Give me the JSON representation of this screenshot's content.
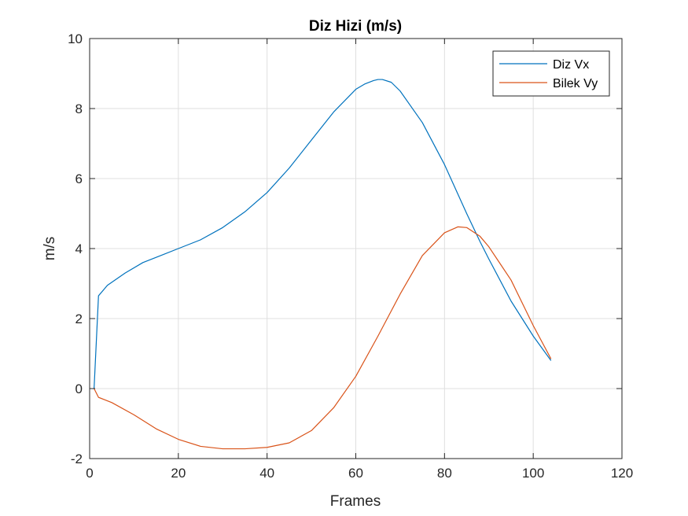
{
  "chart_data": {
    "type": "line",
    "title": "Diz Hizi (m/s)",
    "xlabel": "Frames",
    "ylabel": "m/s",
    "xlim": [
      0,
      120
    ],
    "ylim": [
      -2,
      10
    ],
    "xticks": [
      0,
      20,
      40,
      60,
      80,
      100,
      120
    ],
    "yticks": [
      -2,
      0,
      2,
      4,
      6,
      8,
      10
    ],
    "xtick_labels": [
      "0",
      "20",
      "40",
      "60",
      "80",
      "100",
      "120"
    ],
    "ytick_labels": [
      "-2",
      "0",
      "2",
      "4",
      "6",
      "8",
      "10"
    ],
    "grid": true,
    "legend_position": "top-right",
    "series": [
      {
        "name": "Diz Vx",
        "color": "#0072BD",
        "x": [
          1,
          2,
          4,
          8,
          12,
          16,
          20,
          25,
          30,
          35,
          40,
          45,
          50,
          55,
          60,
          62,
          64,
          65,
          66,
          68,
          70,
          75,
          80,
          85,
          88,
          90,
          95,
          100,
          104
        ],
        "y": [
          0,
          2.65,
          2.95,
          3.3,
          3.6,
          3.8,
          4.0,
          4.25,
          4.6,
          5.05,
          5.6,
          6.3,
          7.1,
          7.9,
          8.55,
          8.7,
          8.8,
          8.83,
          8.83,
          8.75,
          8.5,
          7.6,
          6.4,
          5.0,
          4.2,
          3.7,
          2.5,
          1.5,
          0.8
        ]
      },
      {
        "name": "Bilek Vy",
        "color": "#D95319",
        "x": [
          1,
          2,
          5,
          10,
          15,
          20,
          25,
          30,
          35,
          40,
          45,
          50,
          55,
          60,
          65,
          70,
          75,
          80,
          83,
          85,
          88,
          90,
          95,
          100,
          104
        ],
        "y": [
          0,
          -0.25,
          -0.4,
          -0.75,
          -1.15,
          -1.45,
          -1.65,
          -1.72,
          -1.72,
          -1.68,
          -1.55,
          -1.2,
          -0.55,
          0.35,
          1.5,
          2.7,
          3.8,
          4.45,
          4.62,
          4.6,
          4.35,
          4.05,
          3.1,
          1.8,
          0.85
        ]
      }
    ]
  }
}
